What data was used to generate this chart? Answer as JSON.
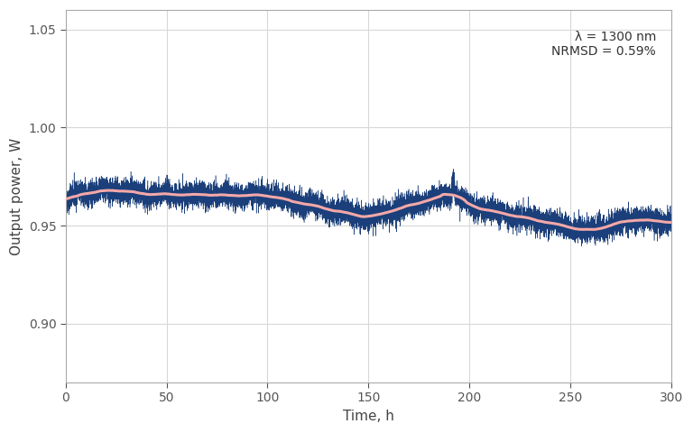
{
  "title": "",
  "xlabel": "Time, h",
  "ylabel": "Output power, W",
  "annotation_line1": "λ = 1300 nm",
  "annotation_line2": "NRMSD = 0.59%",
  "xlim": [
    0,
    300
  ],
  "ylim": [
    0.87,
    1.06
  ],
  "yticks": [
    0.9,
    0.95,
    1.0,
    1.05
  ],
  "xticks": [
    0,
    50,
    100,
    150,
    200,
    250,
    300
  ],
  "noise_color": "#1b3f7a",
  "smooth_color": "#f4a8a8",
  "noise_linewidth": 0.35,
  "smooth_linewidth": 2.2,
  "background_color": "#ffffff",
  "grid_color": "#d8d8d8",
  "noise_alpha": 1.0,
  "smooth_alpha": 1.0,
  "total_hours": 300,
  "n_points": 15000,
  "seed": 42
}
